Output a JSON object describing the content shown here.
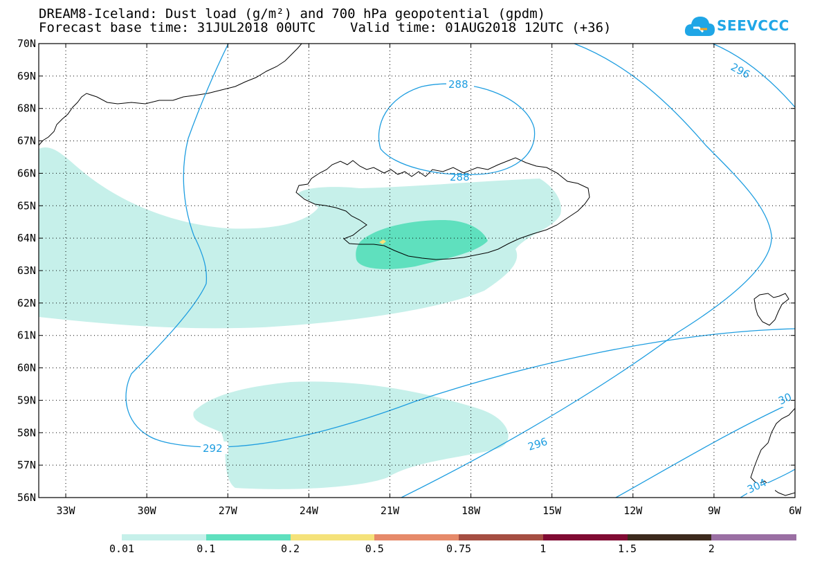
{
  "header": {
    "title": "DREAM8-Iceland: Dust load (g/m²) and 700 hPa geopotential (gpdm)",
    "base_time": "Forecast base time: 31JUL2018 00UTC",
    "valid_time": "Valid time: 01AUG2018 12UTC (+36)"
  },
  "logo": {
    "text": "SEEVCCC",
    "icon": "cloud-icon",
    "color": "#1fa6e6"
  },
  "map": {
    "lat_labels": [
      "70N",
      "69N",
      "68N",
      "67N",
      "66N",
      "65N",
      "64N",
      "63N",
      "62N",
      "61N",
      "60N",
      "59N",
      "58N",
      "57N",
      "56N"
    ],
    "lon_labels": [
      "33W",
      "30W",
      "27W",
      "24W",
      "21W",
      "18W",
      "15W",
      "12W",
      "9W",
      "6W"
    ],
    "contour_labels": [
      "288",
      "288",
      "292",
      "296",
      "296",
      "30",
      "304"
    ],
    "contour_color": "#1d9de0"
  },
  "colorbar": {
    "colors": [
      "#c6f0ea",
      "#5fe0be",
      "#f5e27a",
      "#e68a6a",
      "#a54e42",
      "#800b33",
      "#3d2a1d",
      "#9a6fa3"
    ],
    "labels": [
      "0.01",
      "0.1",
      "0.2",
      "0.5",
      "0.75",
      "1",
      "1.5",
      "2"
    ]
  }
}
